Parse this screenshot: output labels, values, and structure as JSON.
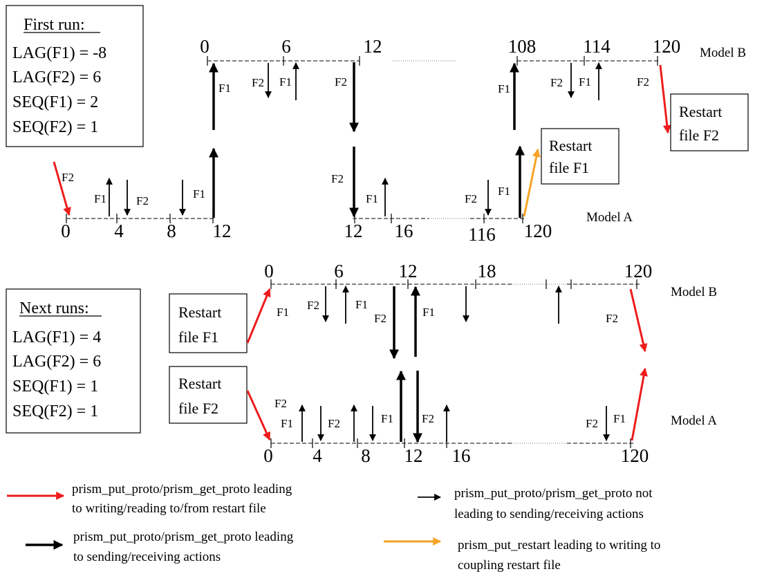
{
  "first_run": {
    "title": "First run:",
    "params": [
      "LAG(F1) = -8",
      "LAG(F2) = 6",
      "SEQ(F1) = 2",
      "SEQ(F2) = 1"
    ]
  },
  "next_runs": {
    "title": "Next runs:",
    "params": [
      "LAG(F1) = 4",
      "LAG(F2) = 6",
      "SEQ(F1) = 1",
      "SEQ(F2) = 1"
    ]
  },
  "models": {
    "a": "Model A",
    "b": "Model B"
  },
  "fields": {
    "f1": "F1",
    "f2": "F2"
  },
  "ticks": {
    "first_b": [
      "0",
      "6",
      "12",
      "108",
      "114",
      "120"
    ],
    "first_a": [
      "0",
      "4",
      "8",
      "12",
      "12",
      "16",
      "116",
      "120"
    ],
    "next_b": [
      "0",
      "6",
      "12",
      "18",
      "120"
    ],
    "next_a": [
      "0",
      "4",
      "8",
      "12",
      "16",
      "120"
    ]
  },
  "restart_boxes": {
    "first_f1": [
      "Restart",
      "file F1"
    ],
    "first_f2": [
      "Restart",
      "file F2"
    ],
    "next_f1": [
      "Restart",
      "file F1"
    ],
    "next_f2": [
      "Restart",
      "file F2"
    ]
  },
  "legend": {
    "red": [
      "prism_put_proto/prism_get_proto leading",
      "to writing/reading to/from restart file"
    ],
    "thin_black": [
      "prism_put_proto/prism_get_proto not",
      "leading to sending/receiving actions"
    ],
    "thick_black": [
      "prism_put_proto/prism_get_proto leading",
      "to sending/receiving actions"
    ],
    "orange": [
      "prism_put_restart leading to writing to",
      "coupling restart file"
    ]
  },
  "colors": {
    "red": "#ee1c1c",
    "orange": "#f7a326",
    "black": "#000000"
  }
}
